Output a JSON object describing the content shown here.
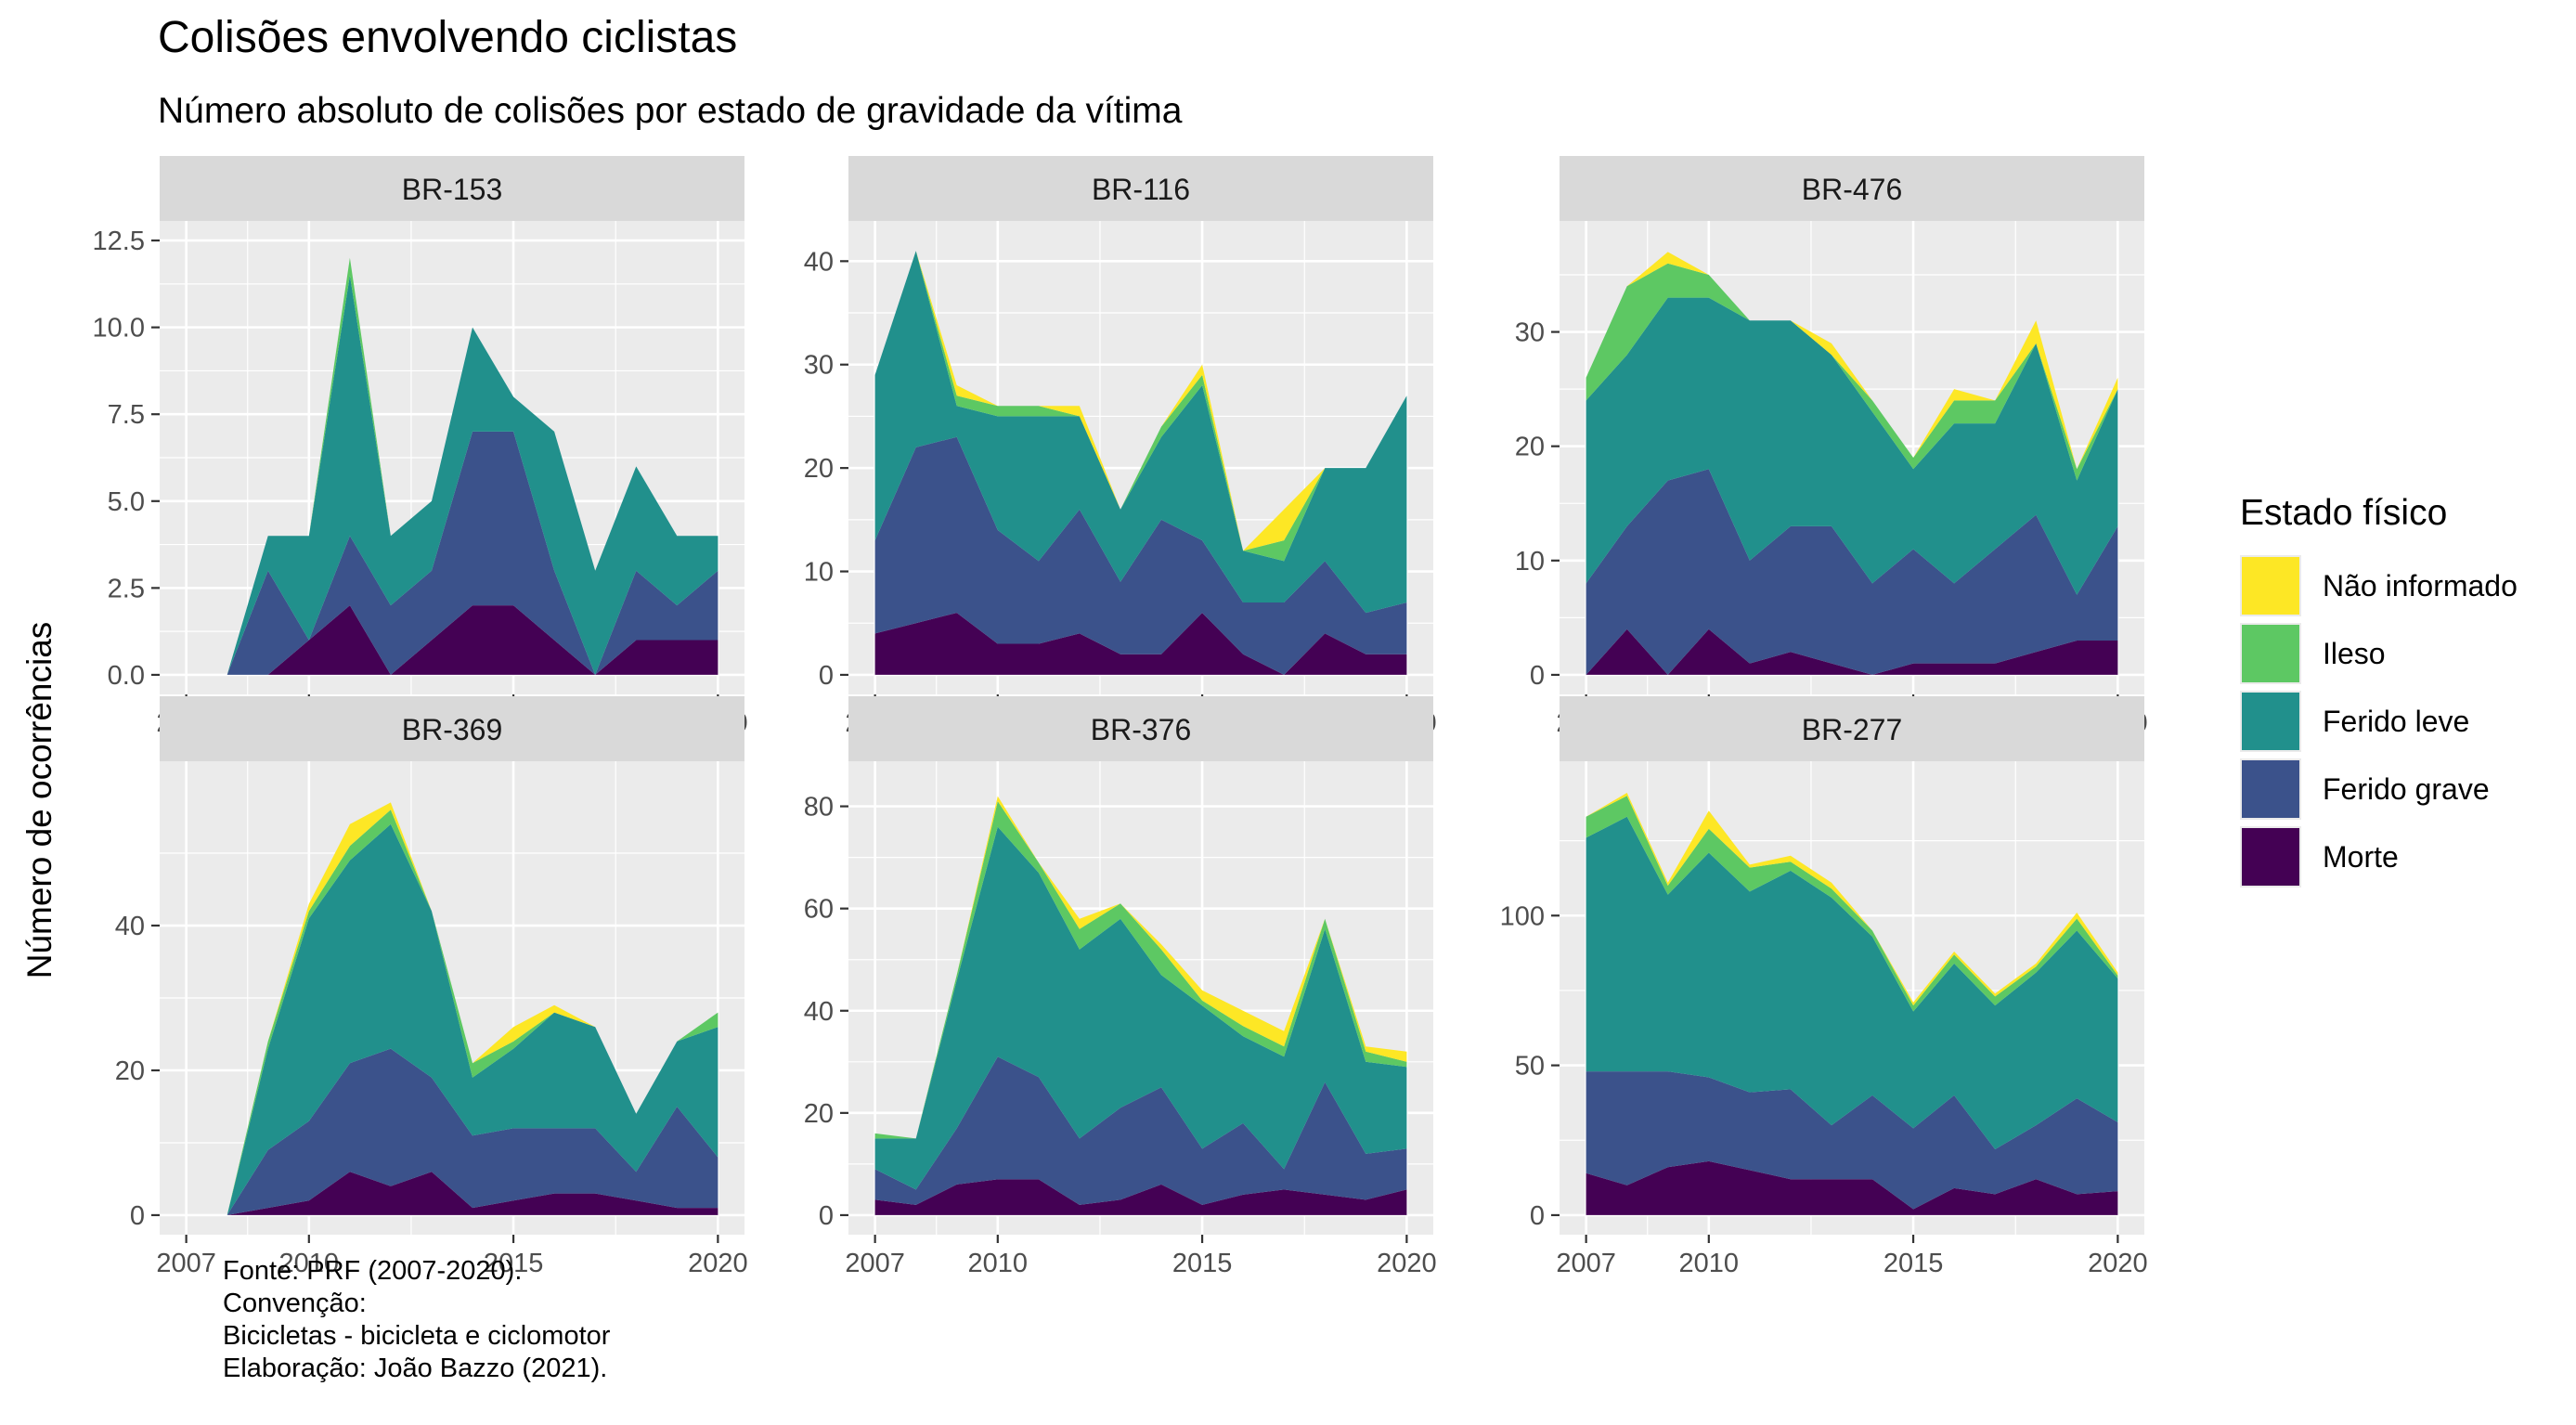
{
  "caption": {
    "lines": [
      "Fonte: PRF (2007-2020).",
      "Convenção:",
      "Bicicletas - bicicleta e ciclomotor",
      "Elaboração: João Bazzo (2021)."
    ]
  },
  "colors": {
    "Morte": "#440154",
    "Ferido grave": "#3B528B",
    "Ferido leve": "#21908C",
    "Ileso": "#5DC863",
    "Não informado": "#FDE725",
    "panel_bg": "#EBEBEB",
    "strip_bg": "#D9D9D9",
    "grid": "#FFFFFF"
  },
  "chart_data": {
    "type": "area",
    "stacked": true,
    "title": "Colisões envolvendo ciclistas",
    "subtitle": "Número absoluto de colisões por estado de gravidade da vítima",
    "ylabel": "Número de ocorrências",
    "xlabel": "",
    "legend_title": "Estado físico",
    "legend_position": "right",
    "legend_order": [
      "Não informado",
      "Ileso",
      "Ferido leve",
      "Ferido grave",
      "Morte"
    ],
    "stack_order": [
      "Morte",
      "Ferido grave",
      "Ferido leve",
      "Ileso",
      "Não informado"
    ],
    "x_ticks": [
      2007,
      2010,
      2015,
      2020
    ],
    "xlim": [
      2007,
      2020
    ],
    "grid": true,
    "panels": [
      {
        "name": "BR-153",
        "ylim": [
          0,
          12.5
        ],
        "y_ticks": [
          0,
          2.5,
          5,
          7.5,
          10,
          12.5
        ],
        "y_tick_labels": [
          "0.0",
          "2.5",
          "5.0",
          "7.5",
          "10.0",
          "12.5"
        ],
        "x": [
          2008,
          2009,
          2010,
          2011,
          2012,
          2013,
          2014,
          2015,
          2016,
          2017,
          2018,
          2019,
          2020
        ],
        "series": [
          {
            "name": "Morte",
            "values": [
              0,
              0,
              1,
              2,
              0,
              1,
              2,
              2,
              1,
              0,
              1,
              1,
              1
            ]
          },
          {
            "name": "Ferido grave",
            "values": [
              0,
              3,
              0,
              2,
              2,
              2,
              5,
              5,
              2,
              0,
              2,
              1,
              2
            ]
          },
          {
            "name": "Ferido leve",
            "values": [
              0,
              1,
              3,
              7.5,
              2,
              2,
              3,
              1,
              4,
              3,
              3,
              2,
              1
            ]
          },
          {
            "name": "Ileso",
            "values": [
              0,
              0,
              0,
              0.5,
              0,
              0,
              0,
              0,
              0,
              0,
              0,
              0,
              0
            ]
          },
          {
            "name": "Não informado",
            "values": [
              0,
              0,
              0,
              0,
              0,
              0,
              0,
              0,
              0,
              0,
              0,
              0,
              0
            ]
          }
        ]
      },
      {
        "name": "BR-116",
        "ylim": [
          0,
          42
        ],
        "y_ticks": [
          0,
          10,
          20,
          30,
          40
        ],
        "y_tick_labels": [
          "0",
          "10",
          "20",
          "30",
          "40"
        ],
        "x": [
          2007,
          2008,
          2009,
          2010,
          2011,
          2012,
          2013,
          2014,
          2015,
          2016,
          2017,
          2018,
          2019,
          2020
        ],
        "series": [
          {
            "name": "Morte",
            "values": [
              4,
              5,
              6,
              3,
              3,
              4,
              2,
              2,
              6,
              2,
              0,
              4,
              2,
              2
            ]
          },
          {
            "name": "Ferido grave",
            "values": [
              9,
              17,
              17,
              11,
              8,
              12,
              7,
              13,
              7,
              5,
              7,
              7,
              4,
              5
            ]
          },
          {
            "name": "Ferido leve",
            "values": [
              16,
              19,
              3,
              11,
              14,
              9,
              7,
              8,
              15,
              5,
              4,
              9,
              14,
              20
            ]
          },
          {
            "name": "Ileso",
            "values": [
              0,
              0,
              1,
              1,
              1,
              0,
              0,
              1,
              1,
              0,
              2,
              0,
              0,
              0
            ]
          },
          {
            "name": "Não informado",
            "values": [
              0,
              0,
              1,
              0,
              0,
              1,
              0,
              0,
              1,
              0,
              3,
              0,
              0,
              0
            ]
          }
        ]
      },
      {
        "name": "BR-476",
        "ylim": [
          0,
          38
        ],
        "y_ticks": [
          0,
          10,
          20,
          30
        ],
        "y_tick_labels": [
          "0",
          "10",
          "20",
          "30"
        ],
        "x": [
          2007,
          2008,
          2009,
          2010,
          2011,
          2012,
          2013,
          2014,
          2015,
          2016,
          2017,
          2018,
          2019,
          2020
        ],
        "series": [
          {
            "name": "Morte",
            "values": [
              0,
              4,
              0,
              4,
              1,
              2,
              1,
              0,
              1,
              1,
              1,
              2,
              3,
              3
            ]
          },
          {
            "name": "Ferido grave",
            "values": [
              8,
              9,
              17,
              14,
              9,
              11,
              12,
              8,
              10,
              7,
              10,
              12,
              4,
              10
            ]
          },
          {
            "name": "Ferido leve",
            "values": [
              16,
              15,
              16,
              15,
              21,
              18,
              15,
              15,
              7,
              14,
              11,
              15,
              10,
              12
            ]
          },
          {
            "name": "Ileso",
            "values": [
              2,
              6,
              3,
              2,
              0,
              0,
              0,
              1,
              1,
              2,
              2,
              0,
              1,
              0
            ]
          },
          {
            "name": "Não informado",
            "values": [
              0,
              0,
              1,
              0,
              0,
              0,
              1,
              0,
              0,
              1,
              0,
              2,
              0,
              1
            ]
          }
        ]
      },
      {
        "name": "BR-369",
        "ylim": [
          0,
          60
        ],
        "y_ticks": [
          0,
          20,
          40
        ],
        "y_tick_labels": [
          "0",
          "20",
          "40"
        ],
        "x": [
          2008,
          2009,
          2010,
          2011,
          2012,
          2013,
          2014,
          2015,
          2016,
          2017,
          2018,
          2019,
          2020
        ],
        "series": [
          {
            "name": "Morte",
            "values": [
              0,
              1,
              2,
              6,
              4,
              6,
              1,
              2,
              3,
              3,
              2,
              1,
              1
            ]
          },
          {
            "name": "Ferido grave",
            "values": [
              0,
              8,
              11,
              15,
              19,
              13,
              10,
              10,
              9,
              9,
              4,
              14,
              7
            ]
          },
          {
            "name": "Ferido leve",
            "values": [
              0,
              14,
              28,
              28,
              31,
              23,
              8,
              11,
              16,
              14,
              8,
              9,
              18
            ]
          },
          {
            "name": "Ileso",
            "values": [
              0,
              1,
              1,
              2,
              2,
              0,
              2,
              1,
              0,
              0,
              0,
              0,
              2
            ]
          },
          {
            "name": "Não informado",
            "values": [
              0,
              0,
              1,
              3,
              1,
              0,
              0,
              2,
              1,
              0,
              0,
              0,
              0
            ]
          }
        ]
      },
      {
        "name": "BR-376",
        "ylim": [
          0,
          85
        ],
        "y_ticks": [
          0,
          20,
          40,
          60,
          80
        ],
        "y_tick_labels": [
          "0",
          "20",
          "40",
          "60",
          "80"
        ],
        "x": [
          2007,
          2008,
          2009,
          2010,
          2011,
          2012,
          2013,
          2014,
          2015,
          2016,
          2017,
          2018,
          2019,
          2020
        ],
        "series": [
          {
            "name": "Morte",
            "values": [
              3,
              2,
              6,
              7,
              7,
              2,
              3,
              6,
              2,
              4,
              5,
              4,
              3,
              5
            ]
          },
          {
            "name": "Ferido grave",
            "values": [
              6,
              3,
              11,
              24,
              20,
              13,
              18,
              19,
              11,
              14,
              4,
              22,
              9,
              8
            ]
          },
          {
            "name": "Ferido leve",
            "values": [
              6,
              10,
              29,
              45,
              40,
              37,
              37,
              22,
              28,
              17,
              22,
              30,
              18,
              16
            ]
          },
          {
            "name": "Ileso",
            "values": [
              1,
              0,
              1,
              5,
              2,
              4,
              3,
              5,
              1,
              2,
              2,
              2,
              2,
              1
            ]
          },
          {
            "name": "Não informado",
            "values": [
              0,
              0,
              0,
              1,
              0,
              2,
              0,
              1,
              2,
              3,
              3,
              0,
              1,
              2
            ]
          }
        ]
      },
      {
        "name": "BR-277",
        "ylim": [
          0,
          145
        ],
        "y_ticks": [
          0,
          50,
          100
        ],
        "y_tick_labels": [
          "0",
          "50",
          "100"
        ],
        "x": [
          2007,
          2008,
          2009,
          2010,
          2011,
          2012,
          2013,
          2014,
          2015,
          2016,
          2017,
          2018,
          2019,
          2020
        ],
        "series": [
          {
            "name": "Morte",
            "values": [
              14,
              10,
              16,
              18,
              15,
              12,
              12,
              12,
              2,
              9,
              7,
              12,
              7,
              8
            ]
          },
          {
            "name": "Ferido grave",
            "values": [
              34,
              38,
              32,
              28,
              26,
              30,
              18,
              28,
              27,
              31,
              15,
              18,
              32,
              23
            ]
          },
          {
            "name": "Ferido leve",
            "values": [
              78,
              85,
              59,
              75,
              67,
              73,
              76,
              53,
              39,
              44,
              48,
              51,
              56,
              48
            ]
          },
          {
            "name": "Ileso",
            "values": [
              7,
              7,
              3,
              8,
              8,
              3,
              3,
              2,
              2,
              3,
              3,
              2,
              4,
              1
            ]
          },
          {
            "name": "Não informado",
            "values": [
              0,
              1,
              1,
              6,
              1,
              2,
              2,
              0,
              1,
              1,
              1,
              1,
              2,
              1
            ]
          }
        ]
      }
    ]
  }
}
